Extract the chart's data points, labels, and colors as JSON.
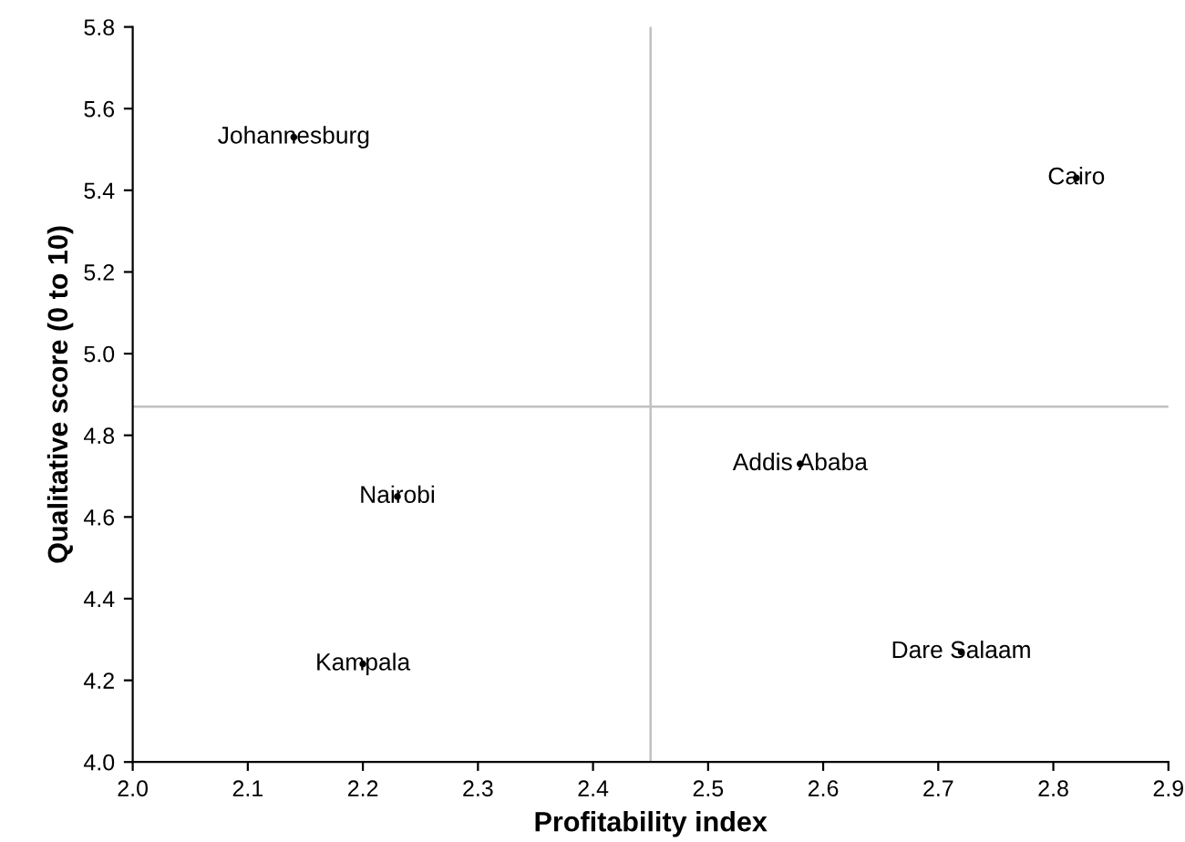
{
  "chart_data": {
    "type": "scatter",
    "xlabel": "Profitability index",
    "ylabel": "Qualitative score (0 to 10)",
    "series": [
      {
        "color": "#000000",
        "x": [
          2.14,
          2.82,
          2.23,
          2.2,
          2.58,
          2.72
        ],
        "values": [
          5.53,
          5.43,
          4.65,
          4.24,
          4.73,
          4.27
        ]
      }
    ],
    "annotations": [
      {
        "text": "Johannesburg",
        "x": 2.14,
        "y": 5.53
      },
      {
        "text": "Cairo",
        "x": 2.82,
        "y": 5.43
      },
      {
        "text": "Nairobi",
        "x": 2.23,
        "y": 4.65
      },
      {
        "text": "Kampala",
        "x": 2.2,
        "y": 4.24
      },
      {
        "text": "Addis Ababa",
        "x": 2.58,
        "y": 4.73
      },
      {
        "text": "Dare Salaam",
        "x": 2.72,
        "y": 4.27
      }
    ],
    "ref_lines": [
      {
        "axis": "x",
        "value": 2.45,
        "color": "#c0c0c0"
      },
      {
        "axis": "y",
        "value": 4.87,
        "color": "#c0c0c0"
      }
    ],
    "xlim": [
      2.0,
      2.9
    ],
    "xticks": [
      {
        "value": 2.0,
        "label": "2.0"
      },
      2.1,
      2.2,
      2.3,
      2.4,
      2.5,
      2.6,
      2.7,
      2.8,
      2.9
    ],
    "ylim": [
      4.0,
      5.8
    ],
    "yticks": [
      {
        "value": 4.0,
        "label": "4.0"
      },
      4.2,
      4.4,
      4.6,
      4.8,
      {
        "value": 5.0,
        "label": "5.0"
      },
      5.2,
      5.4,
      5.6,
      5.8
    ],
    "grid": false
  }
}
